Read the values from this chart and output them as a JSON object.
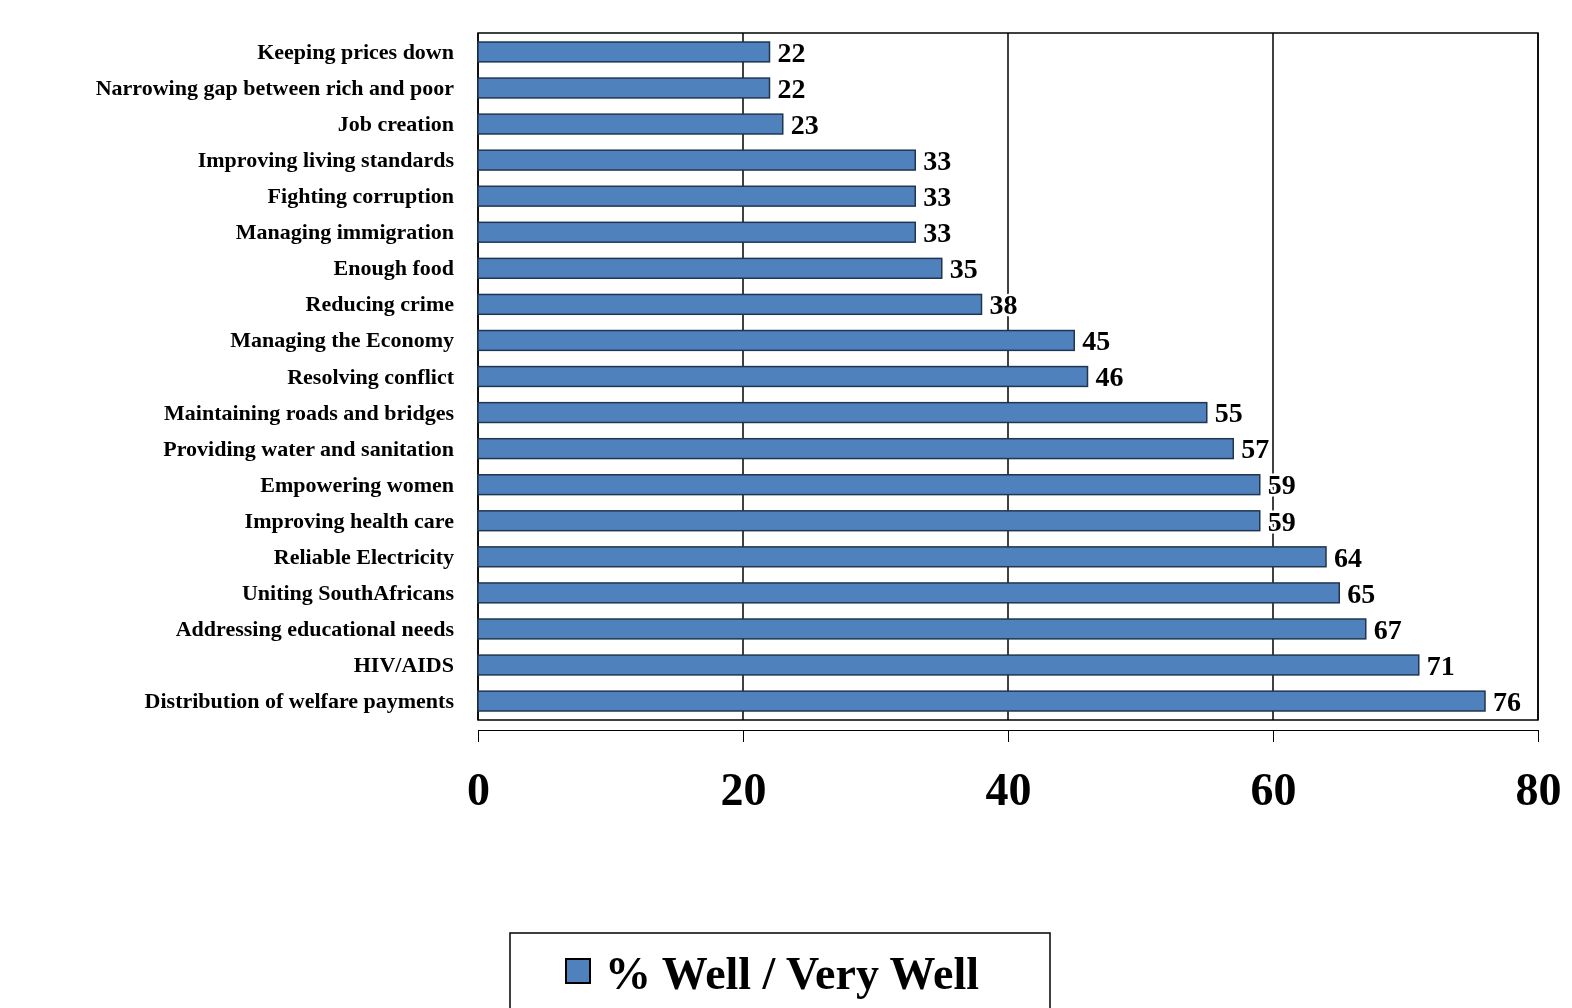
{
  "chart_data": {
    "type": "bar",
    "orientation": "horizontal",
    "categories": [
      "Keeping prices down",
      "Narrowing gap between rich and poor",
      "Job creation",
      "Improving living standards",
      "Fighting corruption",
      "Managing immigration",
      "Enough food",
      "Reducing crime",
      "Managing the Economy",
      "Resolving conflict",
      "Maintaining roads and bridges",
      "Providing water and sanitation",
      "Empowering women",
      "Improving health care",
      "Reliable Electricity",
      "Uniting SouthAfricans",
      "Addressing educational needs",
      "HIV/AIDS",
      "Distribution of welfare payments"
    ],
    "series": [
      {
        "name": "% Well / Very Well",
        "color": "#4f81bd",
        "values": [
          22,
          22,
          23,
          33,
          33,
          33,
          35,
          38,
          45,
          46,
          55,
          57,
          59,
          59,
          64,
          65,
          67,
          71,
          76
        ]
      }
    ],
    "xlim": [
      0,
      80
    ],
    "xticks": [
      0,
      20,
      40,
      60,
      80
    ],
    "grid": "x",
    "legend": "bottom",
    "data_labels": true
  }
}
